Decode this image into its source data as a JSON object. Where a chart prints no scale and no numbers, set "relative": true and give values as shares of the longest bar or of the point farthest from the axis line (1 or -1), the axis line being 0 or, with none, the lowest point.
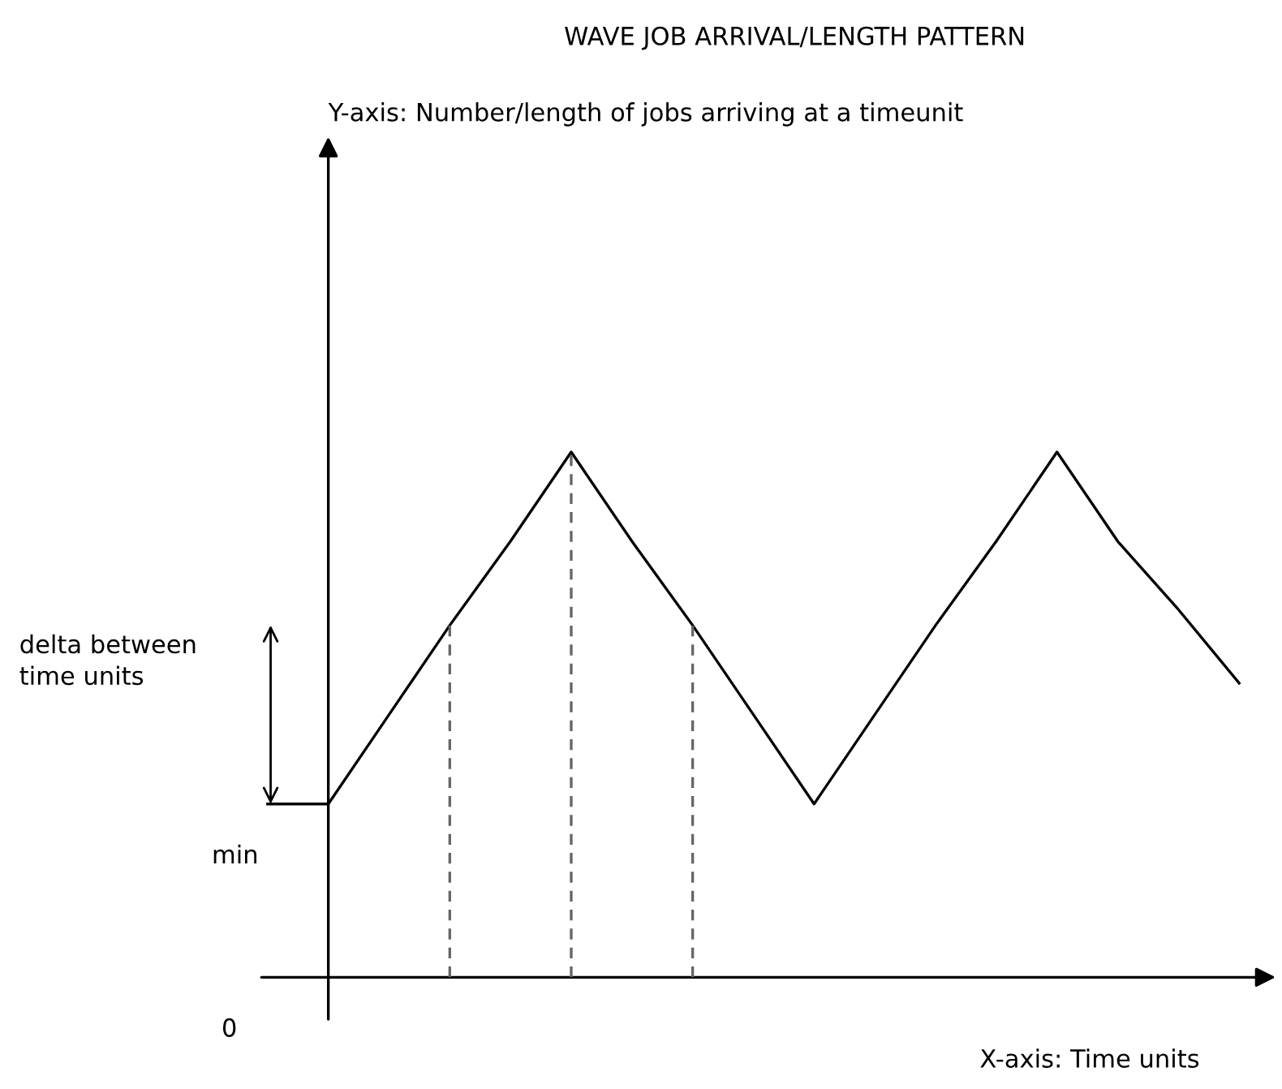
{
  "chart_data": {
    "type": "line",
    "title": "WAVE JOB ARRIVAL/LENGTH PATTERN",
    "xlabel": "X-axis: Time units",
    "relative": true,
    "categories": [
      null,
      null,
      null,
      null,
      null,
      null,
      null,
      null,
      null,
      null,
      null,
      null,
      null,
      null,
      null,
      null,
      null
    ],
    "series": [
      {
        "color": "#000000",
        "values": [
          0.33,
          0.33,
          0.5,
          0.67,
          0.83,
          1,
          0.83,
          0.67,
          0.5,
          0.33,
          0.5,
          0.67,
          0.83,
          1,
          0.83,
          0.7,
          0.56
        ]
      }
    ],
    "annotations": [
      "Y-axis: Number/length of jobs arriving at a timeunit",
      "delta between time units",
      "min",
      "0"
    ]
  }
}
